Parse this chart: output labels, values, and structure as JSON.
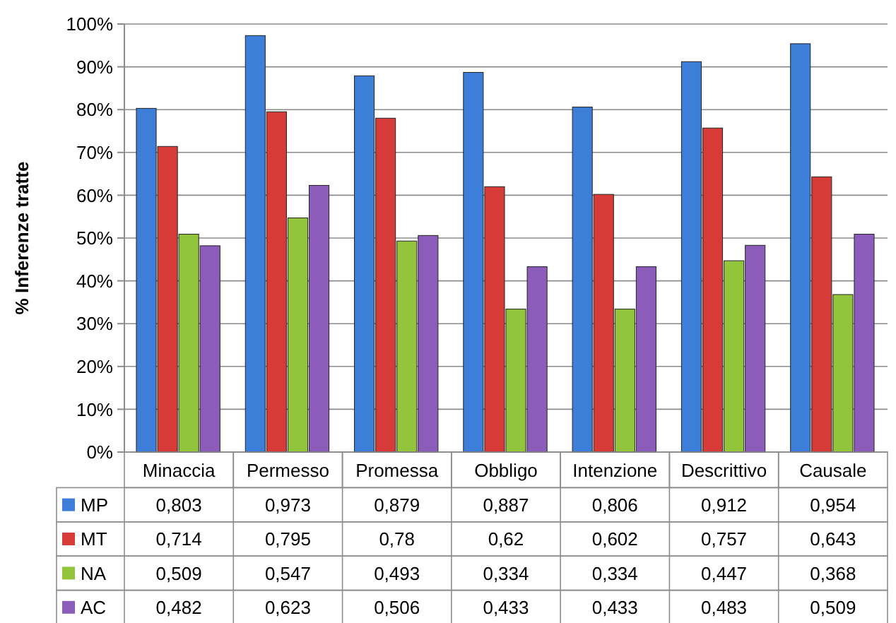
{
  "chart_data": {
    "type": "bar",
    "ylabel": "% Inferenze tratte",
    "categories": [
      "Minaccia",
      "Permesso",
      "Promessa",
      "Obbligo",
      "Intenzione",
      "Descrittivo",
      "Causale"
    ],
    "series": [
      {
        "name": "MP",
        "color": "#3d7ed8",
        "values": [
          0.803,
          0.973,
          0.879,
          0.887,
          0.806,
          0.912,
          0.954
        ],
        "value_labels": [
          "0,803",
          "0,973",
          "0,879",
          "0,887",
          "0,806",
          "0,912",
          "0,954"
        ]
      },
      {
        "name": "MT",
        "color": "#d63b37",
        "values": [
          0.714,
          0.795,
          0.78,
          0.62,
          0.602,
          0.757,
          0.643
        ],
        "value_labels": [
          "0,714",
          "0,795",
          "0,78",
          "0,62",
          "0,602",
          "0,757",
          "0,643"
        ]
      },
      {
        "name": "NA",
        "color": "#92c43c",
        "values": [
          0.509,
          0.547,
          0.493,
          0.334,
          0.334,
          0.447,
          0.368
        ],
        "value_labels": [
          "0,509",
          "0,547",
          "0,493",
          "0,334",
          "0,334",
          "0,447",
          "0,368"
        ]
      },
      {
        "name": "AC",
        "color": "#8b5cba",
        "values": [
          0.482,
          0.623,
          0.506,
          0.433,
          0.433,
          0.483,
          0.509
        ],
        "value_labels": [
          "0,482",
          "0,623",
          "0,506",
          "0,433",
          "0,433",
          "0,483",
          "0,509"
        ]
      }
    ],
    "ylim": [
      0,
      1
    ],
    "yticks": [
      {
        "value": 0,
        "label": "0%"
      },
      {
        "value": 0.1,
        "label": "10%"
      },
      {
        "value": 0.2,
        "label": "20%"
      },
      {
        "value": 0.3,
        "label": "30%"
      },
      {
        "value": 0.4,
        "label": "40%"
      },
      {
        "value": 0.5,
        "label": "50%"
      },
      {
        "value": 0.6,
        "label": "60%"
      },
      {
        "value": 0.7,
        "label": "70%"
      },
      {
        "value": 0.8,
        "label": "80%"
      },
      {
        "value": 0.9,
        "label": "90%"
      },
      {
        "value": 1,
        "label": "100%"
      }
    ],
    "grid": "y",
    "legend": "bottom left"
  }
}
